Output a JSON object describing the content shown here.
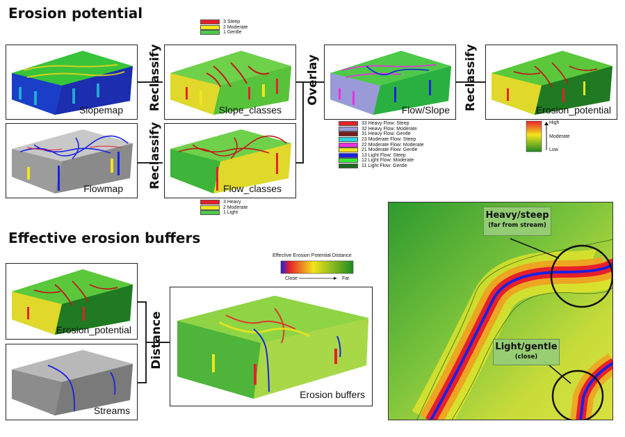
{
  "titles": {
    "erosion_potential": "Erosion potential",
    "effective_buffers": "Effective erosion buffers"
  },
  "panels": {
    "slopemap": "Slopemap",
    "flowmap": "Flowmap",
    "slope_classes": "Slope_classes",
    "flow_classes": "Flow_classes",
    "flow_slope": "Flow/Slope",
    "erosion_potential": "Erosion_potential",
    "erosion_potential_2": "Erosion_potential",
    "streams": "Streams",
    "erosion_buffers": "Erosion buffers"
  },
  "operations": {
    "reclassify_1": "Reclassify",
    "reclassify_2": "Reclassify",
    "overlay": "Overlay",
    "reclassify_3": "Reclassify",
    "distance": "Distance"
  },
  "legends": {
    "slope": [
      {
        "label": "3 Steep",
        "color": "#e8202a"
      },
      {
        "label": "2 Moderate",
        "color": "#f2e51c"
      },
      {
        "label": "1 Gentle",
        "color": "#4ec94a"
      }
    ],
    "flow": [
      {
        "label": "3 Heavy",
        "color": "#e8202a"
      },
      {
        "label": "2 Moderate",
        "color": "#f2e51c"
      },
      {
        "label": "1 Light",
        "color": "#4ec94a"
      }
    ],
    "flow_slope": [
      {
        "label": "33 Heavy Flow: Steep",
        "color": "#e8202a"
      },
      {
        "label": "32 Heavy Flow: Moderate",
        "color": "#9a9ad8"
      },
      {
        "label": "31 Heavy Flow: Gentle",
        "color": "#7a1c1c"
      },
      {
        "label": "23 Moderate Flow: Steep",
        "color": "#2ad4e0"
      },
      {
        "label": "22 Moderate Flow: Moderate",
        "color": "#e832e0"
      },
      {
        "label": "21 Moderate Flow: Gentle",
        "color": "#f2e51c"
      },
      {
        "label": "13 Light Flow: Steep",
        "color": "#1a22e0"
      },
      {
        "label": "12 Light Flow: Moderate",
        "color": "#36e83a"
      },
      {
        "label": "11 Light Flow: Gentle",
        "color": "#1f6a22"
      }
    ],
    "erosion_scale": {
      "high": "High",
      "moderate": "Moderate",
      "low": "Low"
    },
    "distance": {
      "title": "Effective Erosion Potential Distance",
      "close": "Close",
      "far": "Far"
    }
  },
  "callouts": {
    "heavy_title": "Heavy/steep",
    "heavy_sub": "(far from stream)",
    "light_title": "Light/gentle",
    "light_sub": "(close)"
  },
  "colors": {
    "red": "#e8202a",
    "yellow": "#f2e51c",
    "green": "#4ec94a",
    "dark_green": "#1f7a22",
    "blue": "#1a22e0",
    "gray": "#a8a8a8"
  }
}
